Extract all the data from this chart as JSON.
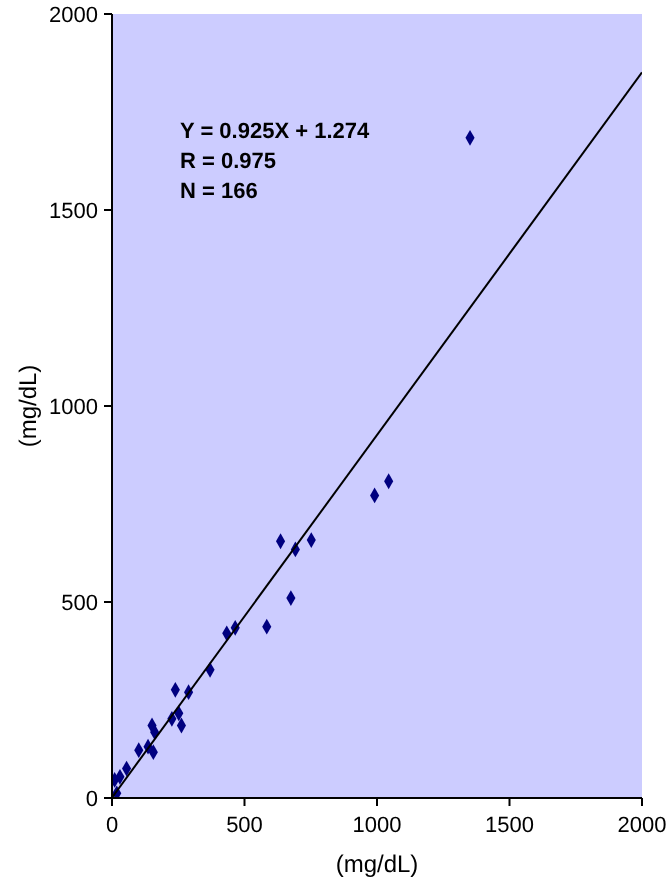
{
  "chart_data": {
    "type": "scatter",
    "xlabel": "(mg/dL)",
    "ylabel": "(mg/dL)",
    "xlim": [
      0,
      2000
    ],
    "ylim": [
      0,
      2000
    ],
    "xticks": [
      0,
      500,
      1000,
      1500,
      2000
    ],
    "yticks": [
      0,
      500,
      1000,
      1500,
      2000
    ],
    "grid": false,
    "marker": "diamond",
    "annotations": [
      "Y = 0.925X + 1.274",
      "R = 0.975",
      "N = 166"
    ],
    "series": [
      {
        "color": "#000080",
        "x": [
          1351,
          1044,
          991,
          752,
          636,
          692,
          675,
          584,
          465,
          433,
          370,
          289,
          239,
          252,
          262,
          226,
          151,
          161,
          101,
          136,
          156,
          55,
          30,
          10,
          18
        ],
        "values": [
          1684,
          808,
          772,
          658,
          655,
          634,
          510,
          437,
          434,
          420,
          327,
          270,
          276,
          216,
          185,
          202,
          185,
          168,
          122,
          131,
          117,
          75,
          54,
          46,
          12
        ]
      },
      {
        "type": "line",
        "color": "#000000",
        "x": [
          0,
          2000
        ],
        "values": [
          1,
          1851
        ],
        "marker": "none",
        "line_style": "solid"
      }
    ]
  }
}
